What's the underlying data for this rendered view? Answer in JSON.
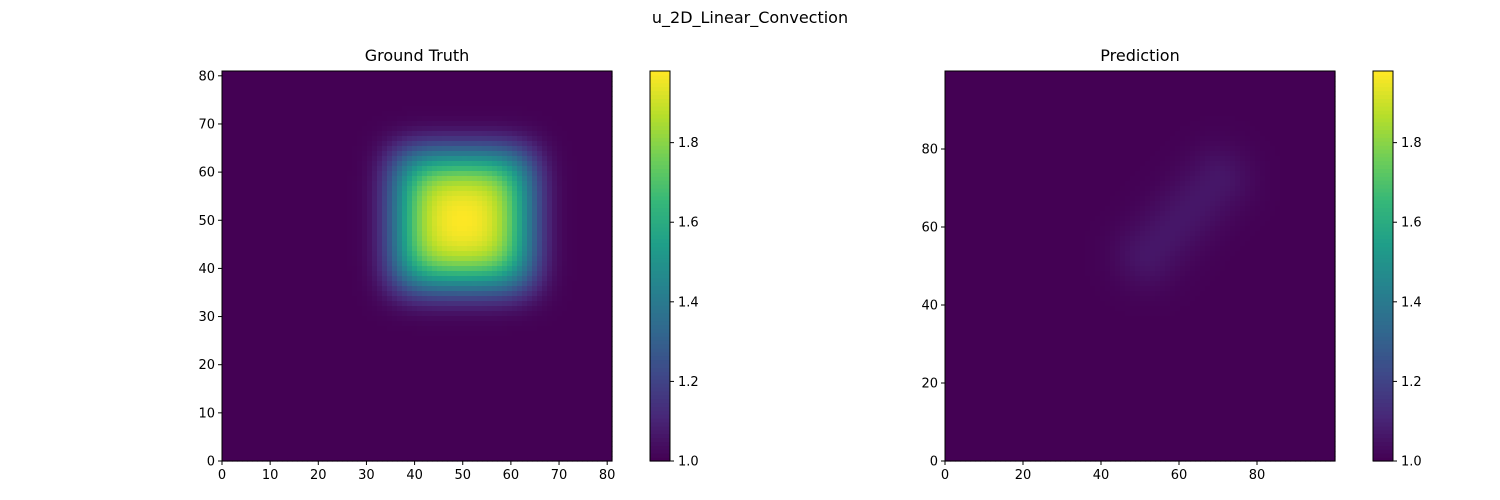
{
  "figure": {
    "suptitle": "u_2D_Linear_Convection"
  },
  "colors": {
    "viridis": [
      "#440154",
      "#482878",
      "#3e4989",
      "#31688e",
      "#26828e",
      "#1f9e89",
      "#35b779",
      "#6ece58",
      "#b5de2b",
      "#fde725"
    ]
  },
  "chart_data": [
    {
      "type": "heatmap",
      "title": "Ground Truth",
      "colormap": "viridis",
      "xlim": [
        0,
        81
      ],
      "ylim": [
        0,
        81
      ],
      "xticks": [
        0,
        10,
        20,
        30,
        40,
        50,
        60,
        70,
        80
      ],
      "yticks": [
        0,
        10,
        20,
        30,
        40,
        50,
        60,
        70,
        80
      ],
      "grid": false,
      "value_range": [
        1.0,
        2.0
      ],
      "background_value": 1.0,
      "peak": {
        "center_x": 50,
        "center_y": 50,
        "half_width": 12,
        "peak_value": 1.98,
        "plateau_min": 1.75
      },
      "colorbar": {
        "ticks": [
          "1.0",
          "1.2",
          "1.4",
          "1.6",
          "1.8"
        ],
        "range": [
          1.0,
          1.98
        ]
      }
    },
    {
      "type": "heatmap",
      "title": "Prediction",
      "colormap": "viridis",
      "xlim": [
        0,
        100
      ],
      "ylim": [
        0,
        100
      ],
      "xticks": [
        0,
        20,
        40,
        60,
        80
      ],
      "yticks": [
        0,
        20,
        40,
        60,
        80
      ],
      "grid": false,
      "value_range": [
        1.0,
        2.0
      ],
      "background_value": 1.0,
      "feature": {
        "from": [
          52,
          53
        ],
        "to": [
          70,
          72
        ],
        "peak_value": 1.06,
        "spread": 6
      },
      "colorbar": {
        "ticks": [
          "1.0",
          "1.2",
          "1.4",
          "1.6",
          "1.8"
        ],
        "range": [
          1.0,
          1.98
        ]
      }
    }
  ]
}
